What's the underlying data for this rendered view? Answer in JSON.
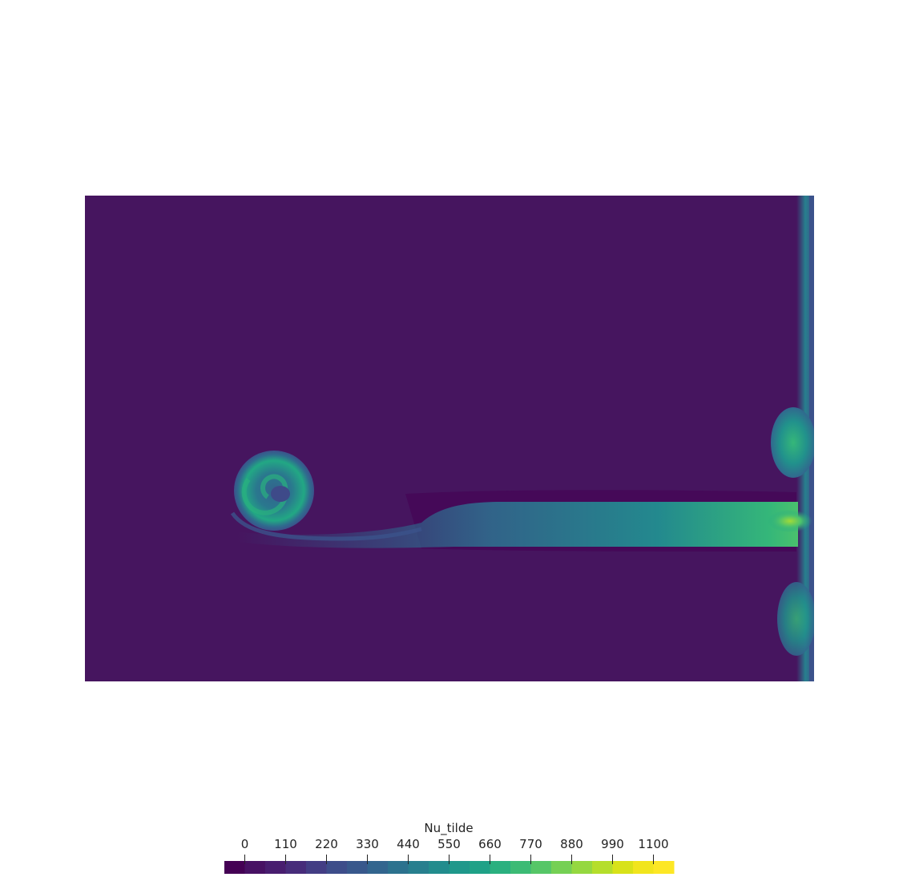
{
  "field": {
    "name": "Nu_tilde",
    "background_color": "#46155f"
  },
  "colorbar": {
    "title": "Nu_tilde",
    "ticks": [
      "0",
      "110",
      "220",
      "330",
      "440",
      "550",
      "660",
      "770",
      "880",
      "990",
      "1100"
    ],
    "tick_values": [
      0,
      110,
      220,
      330,
      440,
      550,
      660,
      770,
      880,
      990,
      1100
    ],
    "range": [
      -55,
      1155
    ],
    "colors": [
      "#440154",
      "#471163",
      "#481d6f",
      "#472c7a",
      "#433d84",
      "#3d4d8a",
      "#38588c",
      "#32658e",
      "#2c728e",
      "#277f8e",
      "#228c8d",
      "#1f988b",
      "#1fa187",
      "#2ab07f",
      "#3cbb75",
      "#56c667",
      "#75d054",
      "#95d840",
      "#b5de2b",
      "#d8e219",
      "#f1e51d",
      "#fde725"
    ]
  }
}
